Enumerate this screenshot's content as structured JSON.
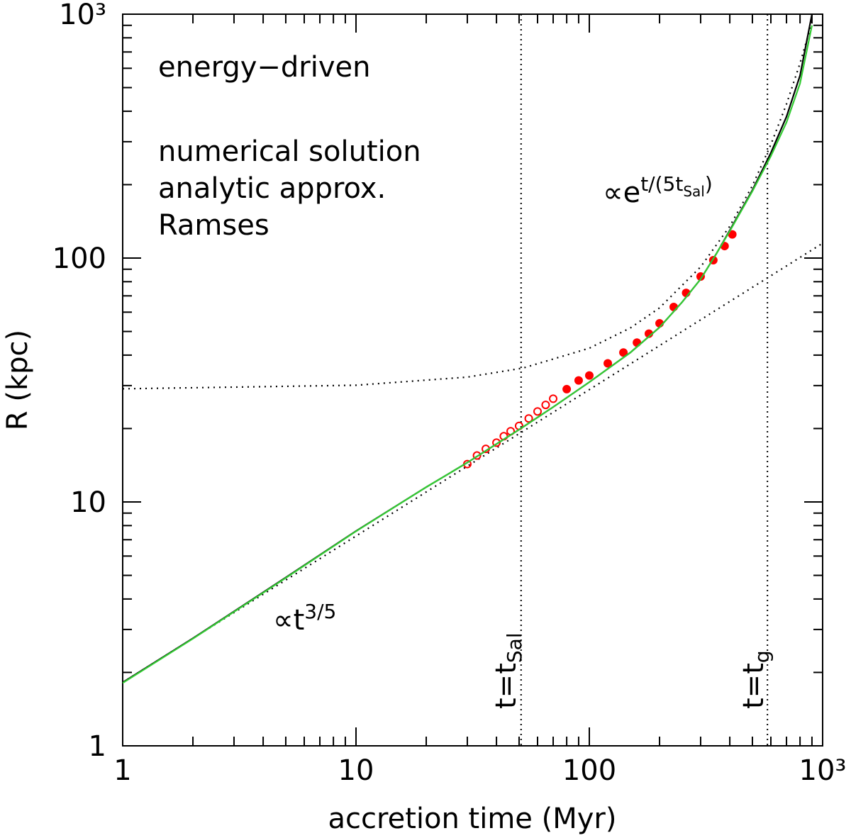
{
  "chart_data": {
    "type": "line",
    "subtitle": "energy−driven",
    "xlabel": "accretion time (Myr)",
    "ylabel": "R (kpc)",
    "xlog": true,
    "ylog": true,
    "xlim": [
      1,
      1000
    ],
    "ylim": [
      1,
      1000
    ],
    "xticks": [
      1,
      10,
      100,
      {
        "value": 1000,
        "label": "10³"
      }
    ],
    "yticks": [
      1,
      10,
      100,
      {
        "value": 1000,
        "label": "10³"
      }
    ],
    "xminor_ticks": [
      2,
      3,
      4,
      5,
      6,
      7,
      8,
      9,
      20,
      30,
      40,
      50,
      60,
      70,
      80,
      90,
      200,
      300,
      400,
      500,
      600,
      700,
      800,
      900
    ],
    "yminor_ticks": [
      2,
      3,
      4,
      5,
      6,
      7,
      8,
      9,
      20,
      30,
      40,
      50,
      60,
      70,
      80,
      90,
      200,
      300,
      400,
      500,
      600,
      700,
      800,
      900
    ],
    "series": [
      {
        "style": "dotted",
        "color": "#000000",
        "x": [
          1,
          1000
        ],
        "values": [
          1.82,
          115
        ]
      },
      {
        "style": "dotted",
        "color": "#000000",
        "x": [
          1,
          10,
          30,
          52,
          100,
          150,
          200,
          300,
          400,
          500,
          600,
          700,
          800,
          900
        ],
        "values": [
          29.1,
          30.1,
          32.5,
          35.4,
          42.7,
          51.7,
          62.5,
          92,
          135,
          198,
          292,
          428,
          629,
          924
        ]
      },
      {
        "name": "Ramses",
        "style": "markers",
        "color": "#ff0000",
        "x": [
          30,
          33,
          36,
          40,
          43,
          46,
          50,
          55,
          60,
          65,
          70,
          80,
          90,
          100,
          120,
          140,
          160,
          180,
          200,
          230,
          260,
          300,
          340,
          380,
          410
        ],
        "values": [
          14.3,
          15.5,
          16.5,
          17.5,
          18.6,
          19.5,
          20.5,
          22,
          23.5,
          25,
          26.5,
          29,
          31.5,
          33,
          37,
          41,
          45,
          49,
          54,
          63,
          72,
          84,
          98,
          112,
          125
        ]
      },
      {
        "name": "numerical solution",
        "style": "solid",
        "color": "#000000",
        "x": [
          1,
          2,
          5,
          10,
          20,
          30,
          50,
          70,
          100,
          150,
          200,
          250,
          300,
          350,
          400,
          500,
          600,
          700,
          800,
          900
        ],
        "values": [
          1.82,
          2.76,
          4.9,
          7.6,
          11.5,
          14.5,
          19.8,
          24.5,
          31,
          41,
          52,
          66,
          82,
          104,
          130,
          190,
          270,
          380,
          560,
          1000
        ]
      },
      {
        "name": "analytic approx.",
        "style": "solid",
        "color": "#33cc33",
        "x": [
          1,
          2,
          5,
          10,
          20,
          30,
          50,
          70,
          100,
          150,
          200,
          250,
          300,
          350,
          400,
          500,
          600,
          700,
          800,
          900
        ],
        "values": [
          1.81,
          2.75,
          4.88,
          7.58,
          11.5,
          14.5,
          19.8,
          24.5,
          31,
          41,
          52,
          66,
          82,
          104,
          129,
          188,
          262,
          360,
          520,
          900
        ]
      }
    ],
    "legend_order": [
      3,
      4,
      2
    ],
    "vlines": [
      51,
      580
    ],
    "annotations": [
      {
        "parts": [
          {
            "text": "∝e"
          },
          {
            "text": "t/(5t",
            "shift": "sup"
          },
          {
            "text": "Sal",
            "shift": "supsub"
          },
          {
            "text": ")",
            "shift": "sup"
          }
        ]
      },
      {
        "parts": [
          {
            "text": "∝t"
          },
          {
            "text": "3/5",
            "shift": "sup"
          }
        ]
      },
      {
        "parts": [
          {
            "text": "t=t"
          },
          {
            "text": "Sal",
            "shift": "sub"
          }
        ]
      },
      {
        "parts": [
          {
            "text": "t=t"
          },
          {
            "text": "g",
            "shift": "sub"
          }
        ]
      }
    ]
  }
}
